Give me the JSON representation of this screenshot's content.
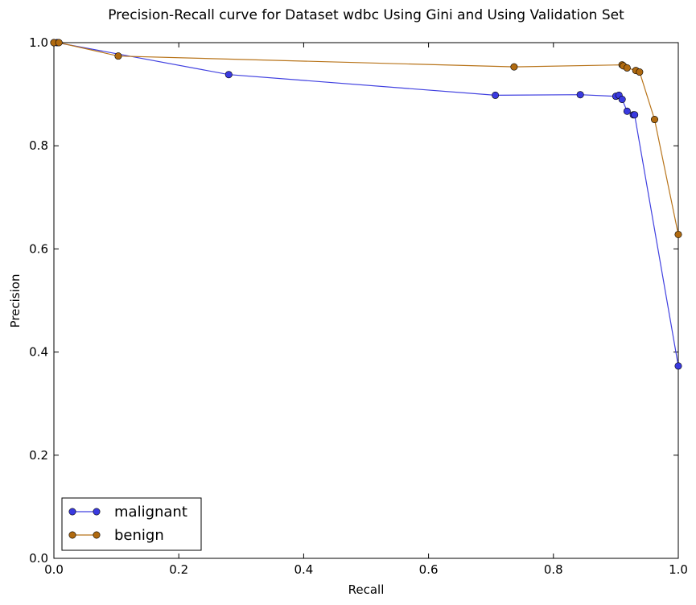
{
  "chart_data": {
    "type": "line",
    "title": "Precision-Recall curve for Dataset wdbc Using Gini and Using Validation Set",
    "xlabel": "Recall",
    "ylabel": "Precision",
    "xlim": [
      0.0,
      1.0
    ],
    "ylim": [
      0.0,
      1.0
    ],
    "xticks": [
      "0.0",
      "0.2",
      "0.4",
      "0.6",
      "0.8",
      "1.0"
    ],
    "yticks": [
      "0.0",
      "0.2",
      "0.4",
      "0.6",
      "0.8",
      "1.0"
    ],
    "grid": false,
    "legend_position": "lower-left",
    "series": [
      {
        "name": "malignant",
        "color": "#4040e0",
        "marker_color": "#3a3ae0",
        "points": [
          [
            0.0,
            1.0
          ],
          [
            0.005,
            1.0
          ],
          [
            0.28,
            0.938
          ],
          [
            0.707,
            0.898
          ],
          [
            0.843,
            0.899
          ],
          [
            0.9,
            0.896
          ],
          [
            0.905,
            0.898
          ],
          [
            0.91,
            0.89
          ],
          [
            0.918,
            0.867
          ],
          [
            0.928,
            0.86
          ],
          [
            0.93,
            0.86
          ],
          [
            1.0,
            0.373
          ]
        ]
      },
      {
        "name": "benign",
        "color": "#b8741a",
        "marker_color": "#b06a10",
        "points": [
          [
            0.0,
            1.0
          ],
          [
            0.008,
            1.0
          ],
          [
            0.103,
            0.974
          ],
          [
            0.737,
            0.953
          ],
          [
            0.91,
            0.957
          ],
          [
            0.912,
            0.955
          ],
          [
            0.918,
            0.951
          ],
          [
            0.932,
            0.946
          ],
          [
            0.938,
            0.943
          ],
          [
            0.962,
            0.851
          ],
          [
            1.0,
            0.628
          ]
        ]
      }
    ]
  }
}
